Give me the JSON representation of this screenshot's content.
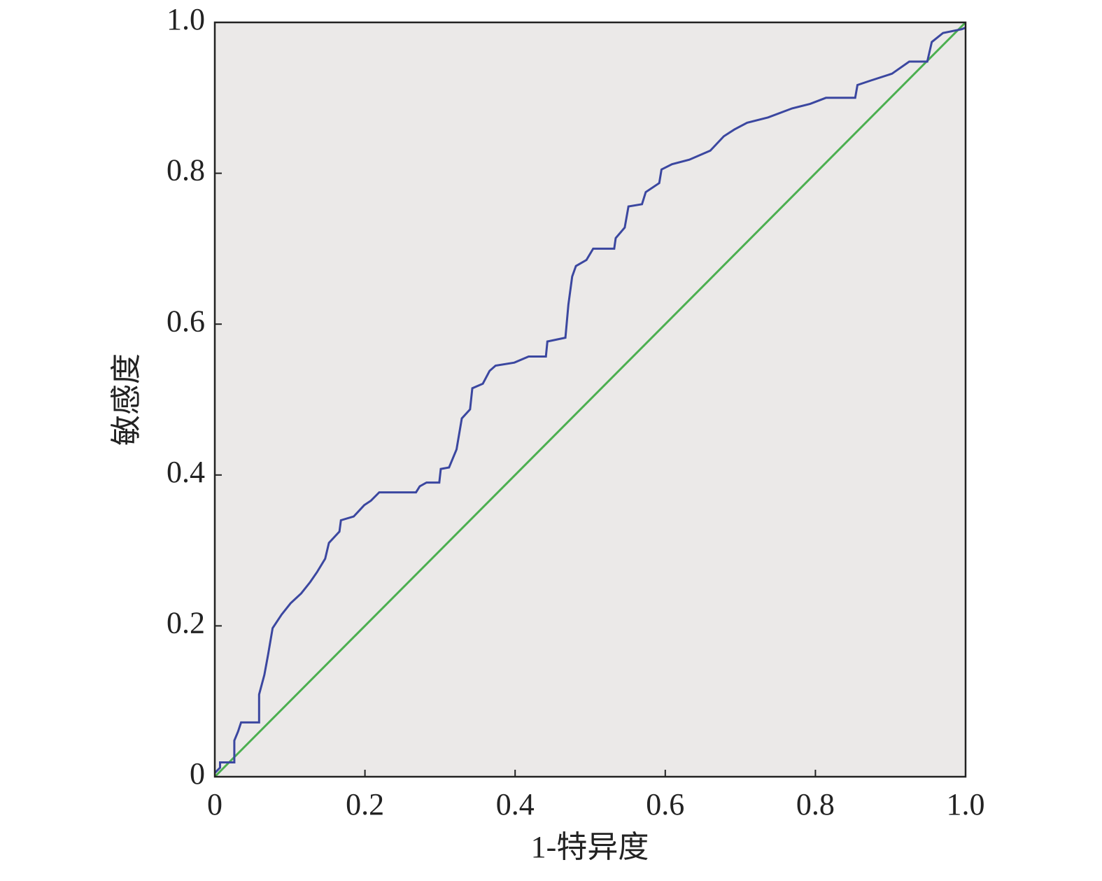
{
  "chart_data": {
    "type": "line",
    "x_label": "1-特异度",
    "y_label": "敏感度",
    "xlim": [
      0,
      1
    ],
    "ylim": [
      0,
      1
    ],
    "xticks": [
      0,
      0.2,
      0.4,
      0.6,
      0.8,
      {
        "value": 1,
        "label": "1.0"
      }
    ],
    "yticks": [
      0,
      0.2,
      0.4,
      0.6,
      0.8,
      {
        "value": 1,
        "label": "1.0"
      }
    ],
    "background": "#ebe9e8",
    "series": [
      {
        "color": "#3b47a0",
        "x": [
          0,
          0.007,
          0.007,
          0.026,
          0.026,
          0.031,
          0.035,
          0.059,
          0.059,
          0.066,
          0.071,
          0.077,
          0.089,
          0.101,
          0.115,
          0.127,
          0.136,
          0.147,
          0.152,
          0.166,
          0.168,
          0.185,
          0.199,
          0.208,
          0.219,
          0.268,
          0.273,
          0.282,
          0.299,
          0.301,
          0.312,
          0.322,
          0.329,
          0.34,
          0.343,
          0.357,
          0.366,
          0.374,
          0.399,
          0.418,
          0.441,
          0.443,
          0.467,
          0.471,
          0.476,
          0.481,
          0.495,
          0.504,
          0.532,
          0.534,
          0.546,
          0.551,
          0.569,
          0.574,
          0.592,
          0.595,
          0.609,
          0.632,
          0.66,
          0.678,
          0.692,
          0.709,
          0.737,
          0.769,
          0.793,
          0.814,
          0.853,
          0.856,
          0.874,
          0.902,
          0.925,
          0.949,
          0.955,
          0.97,
          0.995,
          1
        ],
        "values": [
          0.005,
          0.012,
          0.019,
          0.019,
          0.048,
          0.06,
          0.072,
          0.072,
          0.109,
          0.135,
          0.162,
          0.197,
          0.215,
          0.23,
          0.243,
          0.258,
          0.271,
          0.289,
          0.31,
          0.325,
          0.34,
          0.345,
          0.36,
          0.366,
          0.377,
          0.377,
          0.385,
          0.39,
          0.39,
          0.408,
          0.41,
          0.434,
          0.475,
          0.487,
          0.515,
          0.521,
          0.538,
          0.545,
          0.549,
          0.557,
          0.557,
          0.577,
          0.582,
          0.626,
          0.663,
          0.677,
          0.685,
          0.7,
          0.7,
          0.714,
          0.728,
          0.756,
          0.759,
          0.775,
          0.787,
          0.805,
          0.812,
          0.818,
          0.83,
          0.849,
          0.858,
          0.867,
          0.874,
          0.886,
          0.892,
          0.9,
          0.9,
          0.917,
          0.923,
          0.932,
          0.948,
          0.948,
          0.974,
          0.986,
          0.991,
          0.993
        ]
      },
      {
        "color": "#4caf50",
        "x": [
          0,
          1
        ],
        "values": [
          0,
          1
        ]
      }
    ]
  }
}
